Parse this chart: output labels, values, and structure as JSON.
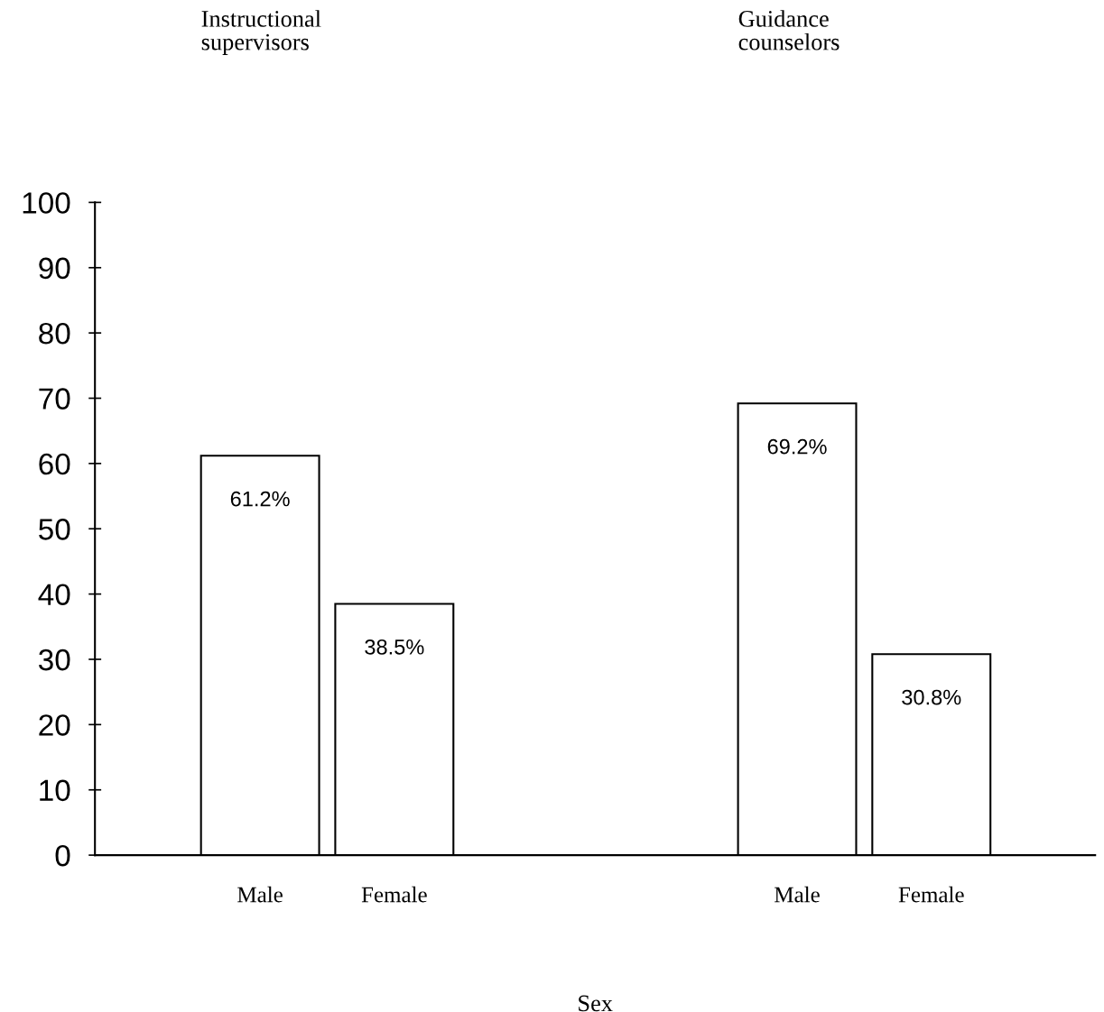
{
  "chart_data": {
    "type": "bar",
    "xlabel": "Sex",
    "categories": [
      "Male",
      "Female",
      null,
      null,
      "Male",
      "Female"
    ],
    "values": [
      61.2,
      38.5,
      null,
      null,
      69.2,
      30.8
    ],
    "value_labels": [
      "61.2%",
      "38.5%",
      null,
      null,
      "69.2%",
      "30.8%"
    ],
    "color": "#ffffff",
    "ylim": [
      0,
      100
    ],
    "yticks": [
      0,
      10,
      20,
      30,
      40,
      50,
      60,
      70,
      80,
      90,
      100
    ],
    "grid": false,
    "annotations": [
      "Instructional\nsupervisors",
      "Guidance\ncounselors"
    ]
  }
}
